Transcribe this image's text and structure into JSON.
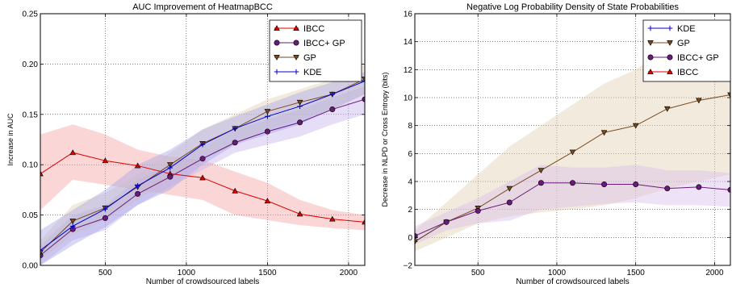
{
  "chart_data": [
    {
      "type": "line",
      "title": "AUC Improvement of HeatmapBCC",
      "xlabel": "Number of crowdsourced labels",
      "ylabel": "Increase in AUC",
      "xlim": [
        100,
        2100
      ],
      "ylim": [
        0.0,
        0.25
      ],
      "xticks": [
        500,
        1000,
        1500,
        2000
      ],
      "xtick_labels": [
        "500",
        "1000",
        "1500",
        "2000"
      ],
      "yticks": [
        0.0,
        0.05,
        0.1,
        0.15,
        0.2,
        0.25
      ],
      "ytick_labels": [
        "0.00",
        "0.05",
        "0.10",
        "0.15",
        "0.20",
        "0.25"
      ],
      "grid": true,
      "legend_position": "top-right",
      "series": [
        {
          "name": "IBCC",
          "color": "#dd0000",
          "marker": "triangle-up",
          "band_color": "#f4a3a3",
          "x": [
            100,
            300,
            500,
            700,
            900,
            1100,
            1300,
            1500,
            1700,
            1900,
            2100
          ],
          "y": [
            0.091,
            0.112,
            0.104,
            0.099,
            0.091,
            0.087,
            0.074,
            0.064,
            0.051,
            0.046,
            0.043
          ],
          "lower": [
            0.055,
            0.085,
            0.08,
            0.075,
            0.07,
            0.065,
            0.05,
            0.045,
            0.04,
            0.037,
            0.035
          ],
          "upper": [
            0.13,
            0.14,
            0.13,
            0.115,
            0.108,
            0.105,
            0.093,
            0.082,
            0.065,
            0.055,
            0.05
          ]
        },
        {
          "name": "IBCC+ GP",
          "color": "#6a1a7a",
          "marker": "circle",
          "band_color": "#c7b3ea",
          "x": [
            100,
            300,
            500,
            700,
            900,
            1100,
            1300,
            1500,
            1700,
            1900,
            2100
          ],
          "y": [
            0.01,
            0.036,
            0.047,
            0.071,
            0.088,
            0.106,
            0.122,
            0.133,
            0.142,
            0.155,
            0.165
          ],
          "lower": [
            0.0,
            0.025,
            0.035,
            0.06,
            0.078,
            0.095,
            0.112,
            0.12,
            0.128,
            0.14,
            0.15
          ],
          "upper": [
            0.02,
            0.05,
            0.06,
            0.085,
            0.1,
            0.118,
            0.135,
            0.145,
            0.155,
            0.167,
            0.178
          ]
        },
        {
          "name": "GP",
          "color": "#7a4a1f",
          "marker": "triangle-down",
          "band_color": "#e3d0b2",
          "x": [
            100,
            300,
            500,
            700,
            900,
            1100,
            1300,
            1500,
            1700,
            1900,
            2100
          ],
          "y": [
            0.013,
            0.044,
            0.057,
            0.078,
            0.1,
            0.121,
            0.136,
            0.153,
            0.162,
            0.17,
            0.185
          ],
          "lower": [
            0.005,
            0.03,
            0.045,
            0.065,
            0.085,
            0.105,
            0.12,
            0.135,
            0.145,
            0.155,
            0.17
          ],
          "upper": [
            0.025,
            0.06,
            0.072,
            0.09,
            0.112,
            0.135,
            0.15,
            0.165,
            0.175,
            0.185,
            0.2
          ]
        },
        {
          "name": "KDE",
          "color": "#0000cc",
          "marker": "plus",
          "band_color": "#a9a9e8",
          "x": [
            100,
            300,
            500,
            700,
            900,
            1100,
            1300,
            1500,
            1700,
            1900,
            2100
          ],
          "y": [
            0.015,
            0.039,
            0.056,
            0.079,
            0.097,
            0.12,
            0.136,
            0.148,
            0.158,
            0.17,
            0.183
          ],
          "lower": [
            0.0,
            0.02,
            0.038,
            0.06,
            0.075,
            0.1,
            0.12,
            0.13,
            0.14,
            0.155,
            0.17
          ],
          "upper": [
            0.035,
            0.055,
            0.075,
            0.1,
            0.115,
            0.135,
            0.148,
            0.16,
            0.172,
            0.182,
            0.192
          ]
        }
      ]
    },
    {
      "type": "line",
      "title": "Negative Log Probability Density of State Probabilities",
      "xlabel": "Number of crowdsourced labels",
      "ylabel": "Decrease in NLPD or Cross Entropy (bits)",
      "xlim": [
        100,
        2100
      ],
      "ylim": [
        -2,
        16
      ],
      "xticks": [
        500,
        1000,
        1500,
        2000
      ],
      "xtick_labels": [
        "500",
        "1000",
        "1500",
        "2000"
      ],
      "yticks": [
        -2,
        0,
        2,
        4,
        6,
        8,
        10,
        12,
        14,
        16
      ],
      "ytick_labels": [
        "−2",
        "0",
        "2",
        "4",
        "6",
        "8",
        "10",
        "12",
        "14",
        "16"
      ],
      "grid": true,
      "legend_position": "top-right",
      "series": [
        {
          "name": "KDE",
          "color": "#0000cc",
          "marker": "plus",
          "band_color": null,
          "x": [
            100,
            300
          ],
          "y": [
            -0.3,
            1.1
          ],
          "lower": null,
          "upper": null
        },
        {
          "name": "GP",
          "color": "#7a4a1f",
          "marker": "triangle-down",
          "band_color": "#e3d0b2",
          "x": [
            100,
            300,
            500,
            700,
            900,
            1100,
            1300,
            1500,
            1700,
            1900,
            2100
          ],
          "y": [
            -0.3,
            1.1,
            2.1,
            3.5,
            4.8,
            6.1,
            7.5,
            8.0,
            9.2,
            9.8,
            10.2
          ],
          "lower": [
            -1.0,
            0.0,
            1.0,
            1.5,
            1.8,
            2.0,
            2.3,
            2.8,
            3.5,
            4.0,
            4.5
          ],
          "upper": [
            0.5,
            2.5,
            4.5,
            6.5,
            8.0,
            9.5,
            11.0,
            12.0,
            13.5,
            14.5,
            15.0
          ]
        },
        {
          "name": "IBCC+ GP",
          "color": "#6a1a7a",
          "marker": "circle",
          "band_color": "#d9c2ea",
          "x": [
            100,
            300,
            500,
            700,
            900,
            1100,
            1300,
            1500,
            1700,
            1900,
            2100
          ],
          "y": [
            0.1,
            1.1,
            1.9,
            2.5,
            3.9,
            3.9,
            3.8,
            3.8,
            3.5,
            3.6,
            3.4
          ],
          "lower": [
            -0.5,
            0.5,
            1.0,
            1.2,
            2.0,
            2.2,
            2.4,
            2.5,
            2.3,
            2.3,
            2.2
          ],
          "upper": [
            0.8,
            1.8,
            2.8,
            4.0,
            5.2,
            5.0,
            5.0,
            5.2,
            4.8,
            4.8,
            4.6
          ]
        },
        {
          "name": "IBCC",
          "color": "#dd0000",
          "marker": "triangle-up",
          "band_color": null,
          "x": [],
          "y": [],
          "lower": null,
          "upper": null
        }
      ]
    }
  ]
}
